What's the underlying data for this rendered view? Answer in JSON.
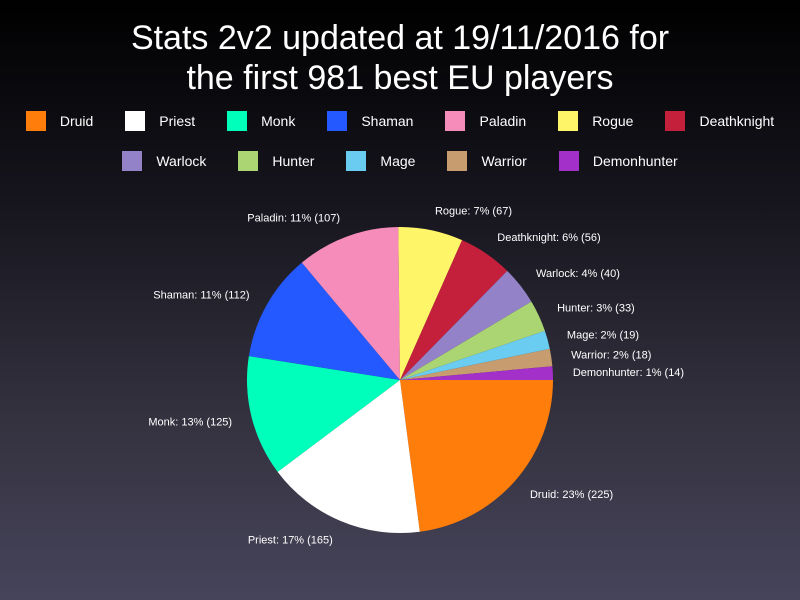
{
  "chart_data": {
    "type": "pie",
    "title": "Stats 2v2 updated at 19/11/2016 for\nthe first 981 best EU players",
    "legend_placement": "top",
    "slices": [
      {
        "name": "Druid",
        "value": 225,
        "label": "Druid: 23% (225)",
        "color": "#ff7d0a"
      },
      {
        "name": "Priest",
        "value": 165,
        "label": "Priest: 17% (165)",
        "color": "#ffffff"
      },
      {
        "name": "Monk",
        "value": 125,
        "label": "Monk: 13% (125)",
        "color": "#00ffba"
      },
      {
        "name": "Shaman",
        "value": 112,
        "label": "Shaman: 11% (112)",
        "color": "#2459ff"
      },
      {
        "name": "Paladin",
        "value": 107,
        "label": "Paladin: 11% (107)",
        "color": "#f58cba"
      },
      {
        "name": "Rogue",
        "value": 67,
        "label": "Rogue: 7% (67)",
        "color": "#fff569"
      },
      {
        "name": "Deathknight",
        "value": 56,
        "label": "Deathknight: 6% (56)",
        "color": "#c41f3b"
      },
      {
        "name": "Warlock",
        "value": 40,
        "label": "Warlock: 4% (40)",
        "color": "#9482c9"
      },
      {
        "name": "Hunter",
        "value": 33,
        "label": "Hunter: 3% (33)",
        "color": "#abd473"
      },
      {
        "name": "Mage",
        "value": 19,
        "label": "Mage: 2% (19)",
        "color": "#69ccf0"
      },
      {
        "name": "Warrior",
        "value": 18,
        "label": "Warrior: 2% (18)",
        "color": "#c79c6e"
      },
      {
        "name": "Demonhunter",
        "value": 14,
        "label": "Demonhunter: 1% (14)",
        "color": "#a330c9"
      }
    ]
  }
}
